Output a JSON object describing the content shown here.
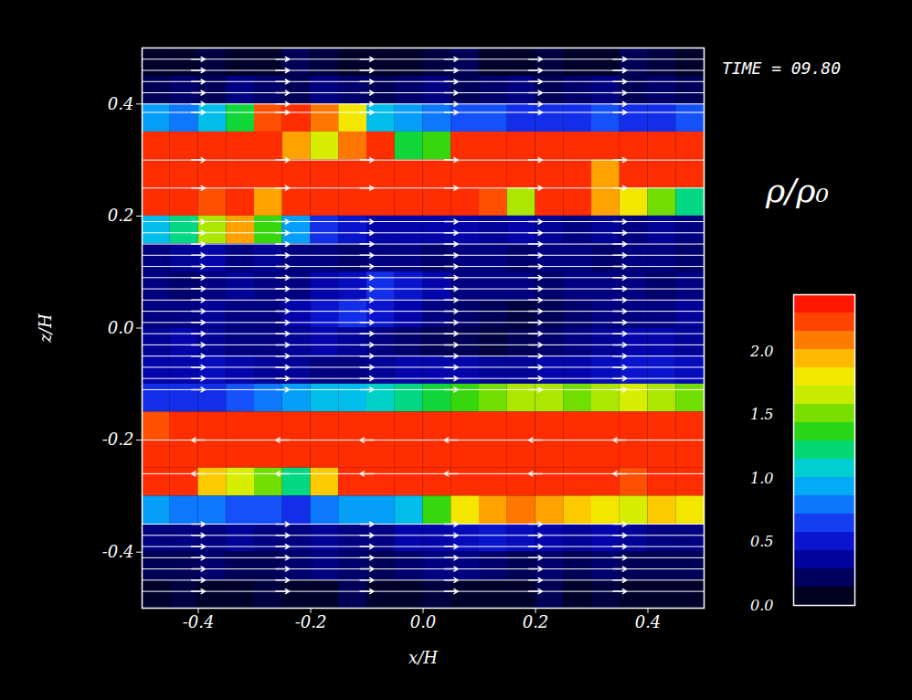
{
  "chart_data": {
    "type": "heatmap",
    "title": "TIME = 09.80",
    "x_label": "x/H",
    "y_label": "z/H",
    "xlim": [
      -0.5,
      0.5
    ],
    "ylim": [
      -0.5,
      0.5
    ],
    "xticks": [
      -0.4,
      -0.2,
      {
        "value": 0,
        "label": "0.0"
      },
      0.2,
      0.4
    ],
    "yticks": [
      -0.4,
      -0.2,
      {
        "value": 0,
        "label": "0.0"
      },
      0.2,
      0.4
    ],
    "density": {
      "x": [
        -0.475,
        -0.425,
        -0.375,
        -0.325,
        -0.275,
        -0.225,
        -0.175,
        -0.125,
        -0.075,
        -0.025,
        0.025,
        0.075,
        0.125,
        0.175,
        0.225,
        0.275,
        0.325,
        0.375,
        0.425,
        0.475
      ],
      "z": [
        0.475,
        0.425,
        0.375,
        0.325,
        0.275,
        0.225,
        0.175,
        0.125,
        0.075,
        0.025,
        -0.025,
        -0.075,
        -0.125,
        -0.175,
        -0.225,
        -0.275,
        -0.325,
        -0.375,
        -0.425,
        -0.475
      ],
      "values": [
        [
          0.1,
          0.1,
          0.15,
          0.1,
          0.1,
          0.2,
          0.15,
          0.1,
          0.1,
          0.1,
          0.15,
          0.2,
          0.1,
          0.1,
          0.15,
          0.1,
          0.1,
          0.2,
          0.15,
          0.1
        ],
        [
          0.2,
          0.25,
          0.2,
          0.3,
          0.25,
          0.2,
          0.3,
          0.25,
          0.2,
          0.25,
          0.3,
          0.2,
          0.25,
          0.3,
          0.2,
          0.25,
          0.3,
          0.2,
          0.25,
          0.2
        ],
        [
          0.9,
          0.8,
          1.0,
          1.3,
          2.2,
          2.3,
          2.1,
          1.8,
          1.0,
          0.9,
          0.8,
          0.7,
          0.7,
          0.6,
          0.6,
          0.6,
          0.7,
          0.6,
          0.6,
          0.7
        ],
        [
          2.3,
          2.3,
          2.3,
          2.3,
          2.3,
          2.0,
          1.7,
          2.1,
          2.3,
          1.3,
          1.4,
          2.3,
          2.3,
          2.3,
          2.3,
          2.3,
          2.3,
          2.3,
          2.3,
          2.3
        ],
        [
          2.3,
          2.3,
          2.3,
          2.3,
          2.3,
          2.3,
          2.3,
          2.3,
          2.3,
          2.3,
          2.3,
          2.3,
          2.3,
          2.3,
          2.3,
          2.3,
          2.0,
          2.3,
          2.3,
          2.3
        ],
        [
          2.3,
          2.3,
          2.2,
          2.3,
          2.0,
          2.3,
          2.3,
          2.3,
          2.3,
          2.3,
          2.3,
          2.3,
          2.2,
          1.6,
          2.3,
          2.3,
          2.0,
          1.8,
          1.5,
          1.2
        ],
        [
          1.0,
          1.2,
          1.6,
          2.0,
          1.4,
          0.9,
          0.6,
          0.5,
          0.4,
          0.4,
          0.4,
          0.4,
          0.35,
          0.4,
          0.35,
          0.3,
          0.35,
          0.3,
          0.35,
          0.3
        ],
        [
          0.3,
          0.35,
          0.4,
          0.3,
          0.35,
          0.3,
          0.3,
          0.25,
          0.3,
          0.3,
          0.25,
          0.3,
          0.3,
          0.25,
          0.3,
          0.3,
          0.25,
          0.3,
          0.3,
          0.25
        ],
        [
          0.3,
          0.25,
          0.3,
          0.35,
          0.3,
          0.3,
          0.4,
          0.45,
          0.6,
          0.5,
          0.4,
          0.3,
          0.3,
          0.3,
          0.25,
          0.3,
          0.3,
          0.3,
          0.25,
          0.3
        ],
        [
          0.3,
          0.3,
          0.35,
          0.3,
          0.3,
          0.4,
          0.5,
          0.6,
          0.5,
          0.4,
          0.3,
          0.25,
          0.2,
          0.15,
          0.2,
          0.25,
          0.3,
          0.3,
          0.3,
          0.35
        ],
        [
          0.35,
          0.4,
          0.35,
          0.3,
          0.3,
          0.35,
          0.4,
          0.35,
          0.3,
          0.25,
          0.2,
          0.2,
          0.15,
          0.2,
          0.25,
          0.3,
          0.35,
          0.4,
          0.4,
          0.35
        ],
        [
          0.4,
          0.4,
          0.45,
          0.4,
          0.35,
          0.35,
          0.3,
          0.3,
          0.35,
          0.4,
          0.4,
          0.4,
          0.35,
          0.35,
          0.4,
          0.4,
          0.45,
          0.5,
          0.5,
          0.45
        ],
        [
          0.6,
          0.6,
          0.6,
          0.7,
          0.8,
          0.9,
          1.0,
          1.0,
          1.1,
          1.2,
          1.3,
          1.4,
          1.5,
          1.6,
          1.6,
          1.5,
          1.6,
          1.7,
          1.6,
          1.5
        ],
        [
          2.2,
          2.3,
          2.3,
          2.3,
          2.3,
          2.3,
          2.3,
          2.3,
          2.3,
          2.3,
          2.3,
          2.3,
          2.3,
          2.3,
          2.3,
          2.3,
          2.3,
          2.3,
          2.3,
          2.3
        ],
        [
          2.3,
          2.3,
          2.3,
          2.3,
          2.3,
          2.3,
          2.3,
          2.3,
          2.3,
          2.3,
          2.3,
          2.3,
          2.3,
          2.3,
          2.3,
          2.3,
          2.3,
          2.3,
          2.3,
          2.3
        ],
        [
          2.3,
          2.3,
          1.9,
          1.7,
          1.5,
          1.2,
          1.9,
          2.3,
          2.3,
          2.3,
          2.3,
          2.3,
          2.3,
          2.3,
          2.3,
          2.3,
          2.3,
          2.2,
          2.3,
          2.3
        ],
        [
          0.9,
          0.8,
          0.8,
          0.7,
          0.7,
          0.6,
          0.8,
          0.9,
          0.9,
          1.0,
          1.4,
          1.8,
          2.0,
          2.1,
          2.0,
          1.9,
          1.8,
          1.7,
          1.9,
          1.8
        ],
        [
          0.3,
          0.3,
          0.3,
          0.35,
          0.3,
          0.3,
          0.35,
          0.3,
          0.3,
          0.4,
          0.4,
          0.45,
          0.5,
          0.45,
          0.4,
          0.35,
          0.4,
          0.35,
          0.3,
          0.3
        ],
        [
          0.2,
          0.2,
          0.25,
          0.2,
          0.2,
          0.25,
          0.3,
          0.25,
          0.2,
          0.25,
          0.3,
          0.3,
          0.25,
          0.2,
          0.25,
          0.2,
          0.25,
          0.2,
          0.2,
          0.2
        ],
        [
          0.1,
          0.15,
          0.1,
          0.1,
          0.15,
          0.1,
          0.1,
          0.2,
          0.1,
          0.1,
          0.15,
          0.1,
          0.1,
          0.1,
          0.2,
          0.1,
          0.15,
          0.1,
          0.1,
          0.1
        ]
      ]
    },
    "colorbar": {
      "label": "ρ/ρ₀",
      "lim": [
        0,
        2.45
      ],
      "ticks": [
        {
          "value": 0,
          "label": "0.0"
        },
        0.5,
        {
          "value": 1,
          "label": "1.0"
        },
        1.5,
        {
          "value": 2,
          "label": "2.0"
        }
      ]
    },
    "field_lines": [
      {
        "z": 0.48,
        "direction": "right"
      },
      {
        "z": 0.46,
        "direction": "right"
      },
      {
        "z": 0.44,
        "direction": "right"
      },
      {
        "z": 0.42,
        "direction": "right"
      },
      {
        "z": 0.4,
        "direction": "right"
      },
      {
        "z": 0.385,
        "direction": "right"
      },
      {
        "z": 0.3,
        "direction": "right"
      },
      {
        "z": 0.25,
        "direction": "right"
      },
      {
        "z": 0.19,
        "direction": "right"
      },
      {
        "z": 0.17,
        "direction": "right"
      },
      {
        "z": 0.15,
        "direction": "right"
      },
      {
        "z": 0.13,
        "direction": "right"
      },
      {
        "z": 0.11,
        "direction": "right"
      },
      {
        "z": 0.09,
        "direction": "right"
      },
      {
        "z": 0.07,
        "direction": "right"
      },
      {
        "z": 0.05,
        "direction": "right"
      },
      {
        "z": 0.03,
        "direction": "right"
      },
      {
        "z": 0.01,
        "direction": "right"
      },
      {
        "z": -0.01,
        "direction": "right"
      },
      {
        "z": -0.03,
        "direction": "right"
      },
      {
        "z": -0.05,
        "direction": "right"
      },
      {
        "z": -0.07,
        "direction": "right"
      },
      {
        "z": -0.09,
        "direction": "right"
      },
      {
        "z": -0.11,
        "direction": "right"
      },
      {
        "z": -0.2,
        "direction": "left"
      },
      {
        "z": -0.26,
        "direction": "left"
      },
      {
        "z": -0.35,
        "direction": "right"
      },
      {
        "z": -0.37,
        "direction": "right"
      },
      {
        "z": -0.39,
        "direction": "right"
      },
      {
        "z": -0.41,
        "direction": "right"
      },
      {
        "z": -0.43,
        "direction": "right"
      },
      {
        "z": -0.45,
        "direction": "right"
      },
      {
        "z": -0.47,
        "direction": "right"
      }
    ],
    "arrow_x": [
      -0.4,
      -0.25,
      -0.1,
      0.05,
      0.2,
      0.35
    ]
  }
}
